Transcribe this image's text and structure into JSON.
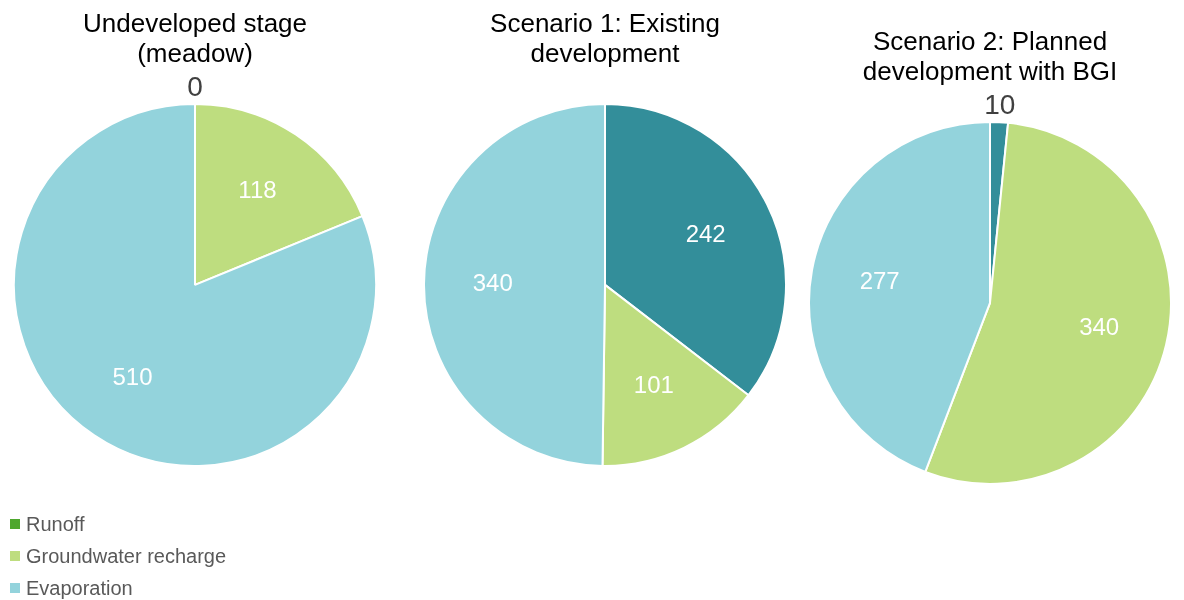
{
  "chart_data": [
    {
      "type": "pie",
      "title": [
        "Undeveloped stage",
        "(meadow)"
      ],
      "categories": [
        "Runoff",
        "Groundwater recharge",
        "Evaporation"
      ],
      "values": [
        0,
        118,
        510
      ],
      "value_labels": [
        "0",
        "118",
        "510"
      ],
      "colors": [
        "#4ea72e",
        "#bedd7f",
        "#93d3dc"
      ],
      "legend": "bottom left"
    },
    {
      "type": "pie",
      "title": [
        "Scenario 1: Existing",
        "development"
      ],
      "categories": [
        null,
        null,
        null
      ],
      "values": [
        242,
        101,
        340
      ],
      "colors": [
        "#338e9a",
        "#bedd7f",
        "#93d3dc"
      ],
      "data_labels": true
    },
    {
      "type": "pie",
      "title": [
        "Scenario 2: Planned",
        "development with BGI"
      ],
      "categories": [
        null,
        null,
        null
      ],
      "values": [
        10,
        340,
        277
      ],
      "colors": [
        "#338e9a",
        "#bedd7f",
        "#93d3dc"
      ],
      "data_labels": true
    }
  ]
}
